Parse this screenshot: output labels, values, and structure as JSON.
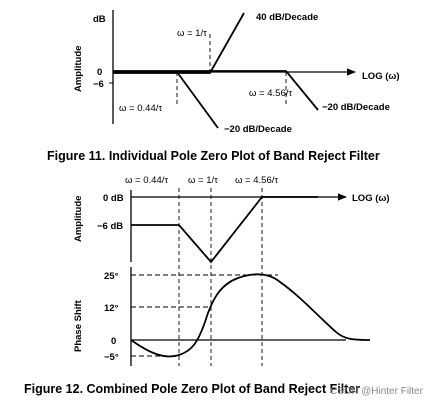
{
  "figure11": {
    "caption": "Figure 11.  Individual Pole Zero Plot of Band Reject Filter",
    "y_axis_title": "Amplitude",
    "y_unit": "dB",
    "tick_0": "0",
    "tick_neg6": "−6",
    "x_axis_label": "LOG (ω)",
    "w_044": "ω = 0.44/τ",
    "w_1": "ω = 1/τ",
    "w_456": "ω = 4.56/τ",
    "slope_plus40": "40 dB/Decade",
    "slope_minus20_a": "−20 dB/Decade",
    "slope_minus20_b": "−20 dB/Decade"
  },
  "figure12": {
    "caption": "Figure 12.  Combined Pole Zero Plot of Band Reject Filter",
    "amp_axis_title": "Amplitude",
    "phase_axis_title": "Phase Shift",
    "tick_0db": "0 dB",
    "tick_neg6db": "−6 dB",
    "x_axis_label": "LOG (ω)",
    "w_044": "ω = 0.44/τ",
    "w_1": "ω = 1/τ",
    "w_456": "ω = 4.56/τ",
    "tick_25": "25°",
    "tick_12": "12°",
    "tick_0": "0",
    "tick_neg5": "−5°"
  },
  "watermark": "CSDN @Hinter Filter"
}
